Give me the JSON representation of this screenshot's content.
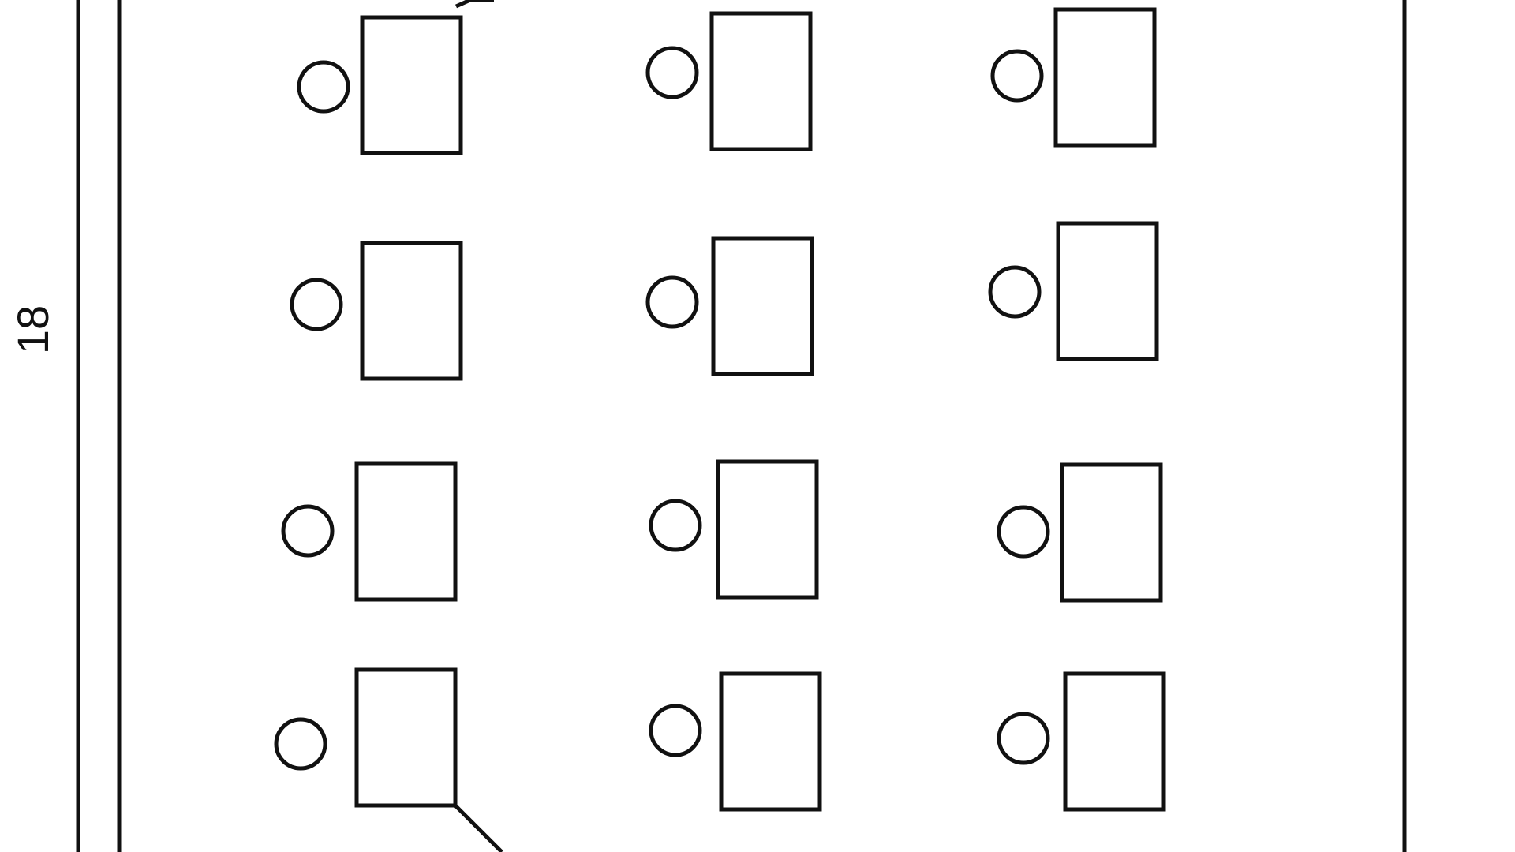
{
  "diagram": {
    "side_label": "18",
    "rows": 4,
    "columns": 3,
    "items_per_cell": [
      "circle",
      "rectangle"
    ]
  },
  "colors": {
    "stroke": "#111111",
    "background": "#ffffff"
  }
}
